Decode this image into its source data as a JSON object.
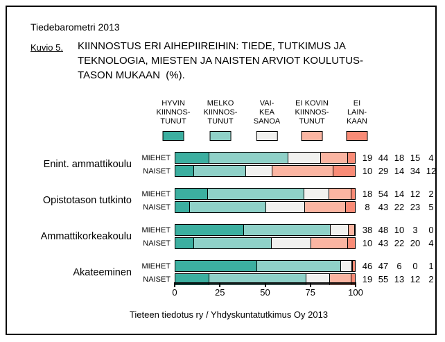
{
  "header": {
    "report": "Tiedebarometri 2013",
    "figure_label": "Kuvio 5.",
    "title": "KIINNOSTUS ERI AIHEPIIREIHIN: TIEDE, TUTKIMUS JA\nTEKNOLOGIA, MIESTEN JA NAISTEN ARVIOT KOULUTUS-\nTASON MUKAAN  (%)."
  },
  "chart_data": {
    "type": "bar",
    "orientation": "horizontal",
    "stacked": true,
    "unit": "%",
    "legend": [
      {
        "label": "HYVIN\nKIINNOS-\nTUNUT",
        "name": "HYVIN KIINNOSTUNUT",
        "color": "#3CAFA0"
      },
      {
        "label": "MELKO\nKIINNOS-\nTUNUT",
        "name": "MELKO KIINNOSTUNUT",
        "color": "#8FD1C8"
      },
      {
        "label": "VAI-\nKEA\nSANOA",
        "name": "VAIKEA SANOA",
        "color": "#F1F1EF"
      },
      {
        "label": "EI KOVIN\nKIINNOS-\nTUNUT",
        "name": "EI KOVIN KIINNOSTUNUT",
        "color": "#FBB5A2"
      },
      {
        "label": "EI\nLAIN-\nKAAN",
        "name": "EI LAINKAAN",
        "color": "#F98B76"
      }
    ],
    "groups": [
      {
        "label": "Enint. ammattikoulu",
        "rows": [
          {
            "label": "MIEHET",
            "values": [
              19,
              44,
              18,
              15,
              4
            ]
          },
          {
            "label": "NAISET",
            "values": [
              10,
              29,
              14,
              34,
              12
            ]
          }
        ]
      },
      {
        "label": "Opistotason tutkinto",
        "rows": [
          {
            "label": "MIEHET",
            "values": [
              18,
              54,
              14,
              12,
              2
            ]
          },
          {
            "label": "NAISET",
            "values": [
              8,
              43,
              22,
              23,
              5
            ]
          }
        ]
      },
      {
        "label": "Ammattikorkeakoulu",
        "rows": [
          {
            "label": "MIEHET",
            "values": [
              38,
              48,
              10,
              3,
              0
            ]
          },
          {
            "label": "NAISET",
            "values": [
              10,
              43,
              22,
              20,
              4
            ]
          }
        ]
      },
      {
        "label": "Akateeminen",
        "rows": [
          {
            "label": "MIEHET",
            "values": [
              46,
              47,
              6,
              0,
              1
            ]
          },
          {
            "label": "NAISET",
            "values": [
              19,
              55,
              13,
              12,
              2
            ]
          }
        ]
      }
    ],
    "x_axis": {
      "ticks": [
        0,
        25,
        50,
        75,
        100
      ],
      "range": [
        0,
        100
      ]
    }
  },
  "footer": {
    "source": "Tieteen tiedotus ry / Yhdyskuntatutkimus Oy 2013"
  }
}
